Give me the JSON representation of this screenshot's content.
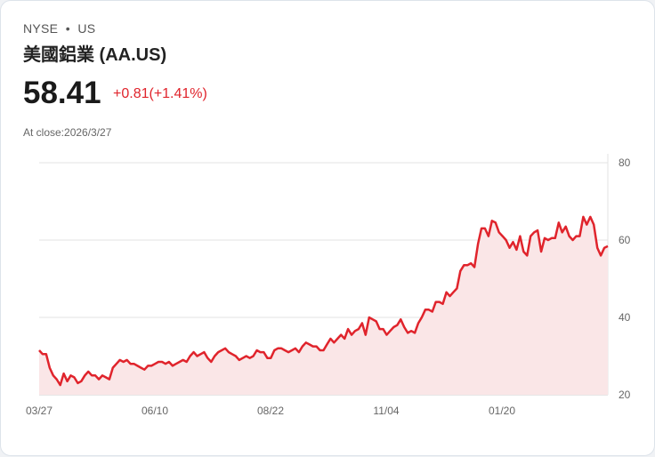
{
  "header": {
    "exchange": "NYSE",
    "dot": "•",
    "market": "US",
    "title": "美國鋁業 (AA.US)",
    "price": "58.41",
    "change": "+0.81(+1.41%)",
    "close_label": "At close:2026/3/27"
  },
  "colors": {
    "line": "#e0242c",
    "fill": "#fae6e7",
    "grid": "#e3e3e3"
  },
  "chart_data": {
    "type": "area",
    "title": "美國鋁業 (AA.US)",
    "xlabel": "",
    "ylabel": "",
    "ylim": [
      20,
      80
    ],
    "yticks": [
      "80",
      "60",
      "40",
      "20"
    ],
    "xticks": [
      "03/27",
      "06/10",
      "08/22",
      "11/04",
      "01/20"
    ],
    "grid": true,
    "values": [
      31.5,
      30.5,
      30.5,
      27,
      25,
      24,
      22.5,
      25.5,
      23.5,
      25,
      24.5,
      23,
      23.5,
      25,
      26,
      25,
      25,
      24,
      25,
      24.5,
      24,
      27,
      28,
      29,
      28.5,
      29,
      28,
      28,
      27.5,
      27,
      26.5,
      27.5,
      27.5,
      28,
      28.5,
      28.5,
      28,
      28.5,
      27.5,
      28,
      28.5,
      29,
      28.5,
      30,
      31,
      30,
      30.5,
      31,
      29.5,
      28.5,
      30,
      31,
      31.5,
      32,
      31,
      30.5,
      30,
      29,
      29.5,
      30,
      29.5,
      30,
      31.5,
      31,
      31,
      29.5,
      29.5,
      31.5,
      32,
      32,
      31.5,
      31,
      31.5,
      32,
      31,
      32.5,
      33.5,
      33,
      32.5,
      32.5,
      31.5,
      31.5,
      33,
      34.5,
      33.5,
      34.5,
      35.5,
      34.5,
      37,
      35.5,
      36.5,
      37,
      38.5,
      35.5,
      40,
      39.5,
      39,
      37,
      37,
      35.5,
      36.5,
      37.5,
      38,
      39.5,
      37.5,
      36,
      36.5,
      36,
      38.5,
      40,
      42,
      42,
      41.5,
      44,
      44,
      43.5,
      46.5,
      45.5,
      46.5,
      47.5,
      52,
      53.5,
      53.5,
      54,
      53,
      59,
      63,
      63,
      61,
      65,
      64.5,
      62,
      61,
      60,
      58,
      59.5,
      57.5,
      61,
      57,
      56,
      61,
      62,
      62.5,
      57,
      60.5,
      60,
      60.5,
      60.5,
      64.5,
      62,
      63.5,
      61,
      60,
      61,
      61,
      66,
      64,
      66,
      64,
      58,
      56,
      58,
      58.41
    ]
  }
}
